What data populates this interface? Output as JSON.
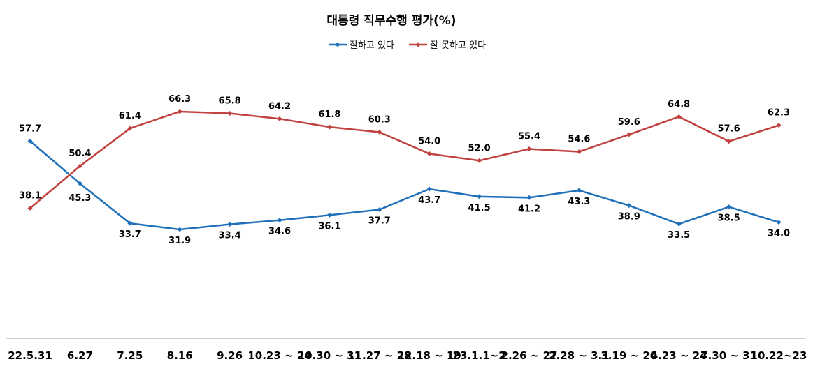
{
  "chart_data": {
    "type": "line",
    "title": "대통령 직무수행 평가(%)",
    "categories": [
      "22.5.31",
      "6.27",
      "7.25",
      "8.16",
      "9.26",
      "10.23 ~ 24",
      "10.30 ~ 31",
      "11.27 ~ 28",
      "12.18 ~ 19",
      "23.1.1~2",
      "2.26 ~ 27",
      "2.28 ~ 3.1",
      "3.19 ~ 20",
      "4.23 ~ 24",
      "7.30 ~ 31",
      "10.22~23"
    ],
    "series": [
      {
        "name": "잘하고 있다",
        "color": "#1f6fb9",
        "values": [
          57.7,
          45.3,
          33.7,
          31.9,
          33.4,
          34.6,
          36.1,
          37.7,
          43.7,
          41.5,
          41.2,
          43.3,
          38.9,
          33.5,
          38.5,
          34.0
        ],
        "labels": [
          "57.7",
          "45.3",
          "33.7",
          "31.9",
          "33.4",
          "34.6",
          "36.1",
          "37.7",
          "43.7",
          "41.5",
          "41.2",
          "43.3",
          "38.9",
          "33.5",
          "38.5",
          "34.0"
        ]
      },
      {
        "name": "잘 못하고 있다",
        "color": "#c0413d",
        "values": [
          38.1,
          50.4,
          61.4,
          66.3,
          65.8,
          64.2,
          61.8,
          60.3,
          54.0,
          52.0,
          55.4,
          54.6,
          59.6,
          64.8,
          57.6,
          62.3
        ],
        "labels": [
          "38.1",
          "50.4",
          "61.4",
          "66.3",
          "65.8",
          "64.2",
          "61.8",
          "60.3",
          "54.0",
          "52.0",
          "55.4",
          "54.6",
          "59.6",
          "64.8",
          "57.6",
          "62.3"
        ]
      }
    ],
    "ylim": [
      0,
      100
    ],
    "grid": false,
    "legend_position": "top-center",
    "xlabel": "",
    "ylabel": ""
  }
}
